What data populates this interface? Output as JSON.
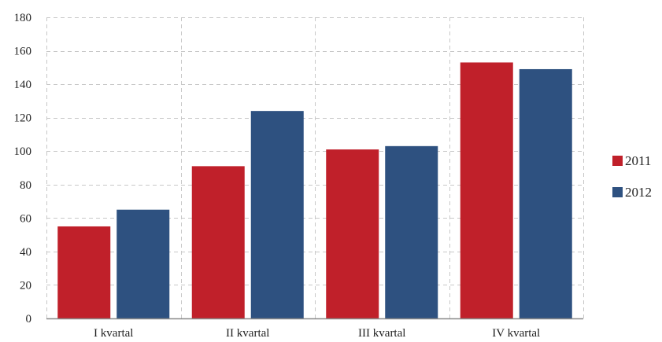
{
  "chart_data": {
    "type": "bar",
    "title": "",
    "xlabel": "",
    "ylabel": "",
    "categories": [
      "I kvartal",
      "II kvartal",
      "III kvartal",
      "IV kvartal"
    ],
    "series": [
      {
        "name": "2011",
        "values": [
          55,
          91,
          101,
          153
        ],
        "color": "#c0202a"
      },
      {
        "name": "2012",
        "values": [
          65,
          124,
          103,
          149
        ],
        "color": "#2e5180"
      }
    ],
    "ylim": [
      0,
      180
    ],
    "yticks": [
      0,
      20,
      40,
      60,
      80,
      100,
      120,
      140,
      160,
      180
    ],
    "grid": true,
    "grid_style": "dashed",
    "legend_position": "right"
  }
}
